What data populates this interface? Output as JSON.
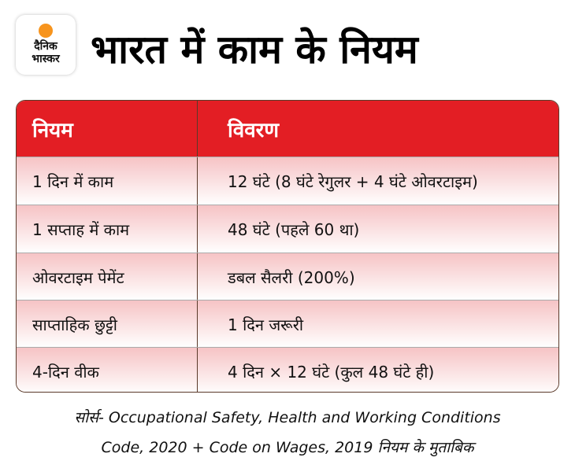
{
  "logo": {
    "line1": "दैनिक",
    "line2": "भास्कर"
  },
  "title": "भारत में काम के नियम",
  "table": {
    "headers": [
      "नियम",
      "विवरण"
    ],
    "rows": [
      [
        "1 दिन में काम",
        "12 घंटे (8 घंटे रेगुलर + 4 घंटे ओवरटाइम)"
      ],
      [
        "1 सप्ताह में काम",
        "48 घंटे (पहले 60 था)"
      ],
      [
        "ओवरटाइम पेमेंट",
        "डबल सैलरी (200%)"
      ],
      [
        "साप्ताहिक छुट्टी",
        "1 दिन जरूरी"
      ],
      [
        "4-दिन वीक",
        "4 दिन × 12 घंटे (कुल 48 घंटे ही)"
      ]
    ]
  },
  "source": {
    "line1": "सोर्स- Occupational Safety, Health and Working Conditions",
    "line2": "Code, 2020 + Code on Wages, 2019 नियम के मुताबिक"
  },
  "colors": {
    "header": "#e31e24",
    "row_top": "#f6c3c5",
    "logo_sun": "#f7941d"
  }
}
